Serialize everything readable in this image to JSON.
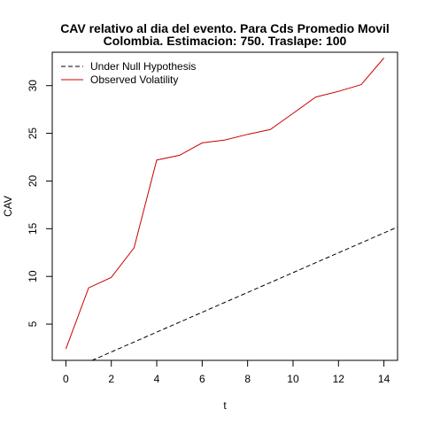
{
  "chart_data": {
    "type": "line",
    "title": "CAV relativo al dia del evento. Para Cds Promedio Movil",
    "subtitle": "Colombia. Estimacion: 750. Traslape: 100",
    "xlabel": "t",
    "ylabel": "CAV",
    "xlim": [
      -0.6,
      14.6
    ],
    "ylim": [
      1.2,
      33.5
    ],
    "xticks": [
      0,
      2,
      4,
      6,
      8,
      10,
      12,
      14
    ],
    "yticks": [
      5,
      10,
      15,
      20,
      25,
      30
    ],
    "grid": false,
    "legend_position": "top-left",
    "series": [
      {
        "name": "Under Null Hypothesis",
        "color": "#000000",
        "dash": "dashed",
        "x": [
          0,
          1,
          2,
          3,
          4,
          5,
          6,
          7,
          8,
          9,
          10,
          11,
          12,
          13,
          14,
          14.6
        ],
        "y": [
          0.0,
          1.04,
          2.08,
          3.12,
          4.16,
          5.2,
          6.24,
          7.28,
          8.32,
          9.36,
          10.4,
          11.44,
          12.48,
          13.52,
          14.56,
          15.18
        ]
      },
      {
        "name": "Observed Volatility",
        "color": "#cc0000",
        "dash": "solid",
        "x": [
          0,
          1,
          2,
          3,
          4,
          5,
          6,
          7,
          8,
          9,
          10,
          11,
          12,
          13,
          14
        ],
        "y": [
          2.4,
          8.8,
          9.9,
          13.0,
          22.2,
          22.7,
          24.0,
          24.3,
          24.9,
          25.4,
          27.1,
          28.8,
          29.4,
          30.1,
          32.9
        ]
      }
    ]
  }
}
